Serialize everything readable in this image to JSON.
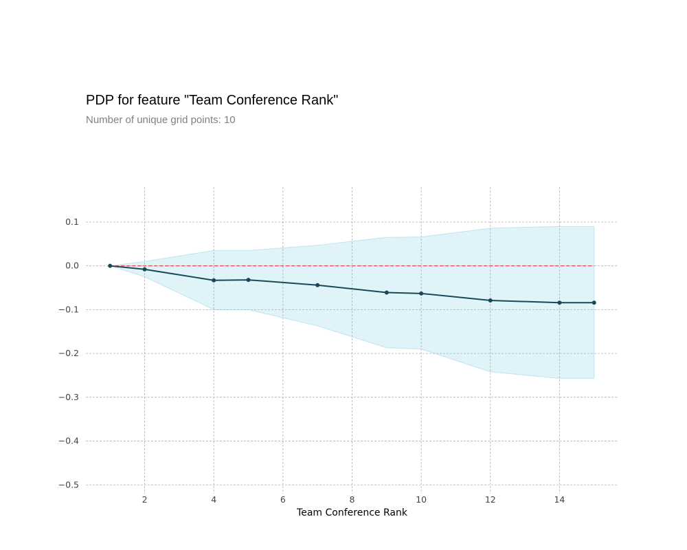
{
  "title": "PDP for feature \"Team Conference Rank\"",
  "subtitle": "Number of unique grid points: 10",
  "chart_data": {
    "type": "line",
    "xlabel": "Team Conference Rank",
    "ylabel": "",
    "xlim": [
      0.3,
      15.7
    ],
    "ylim": [
      -0.52,
      0.18
    ],
    "xticks": [
      2,
      4,
      6,
      8,
      10,
      12,
      14
    ],
    "xtick_labels": [
      "2",
      "4",
      "6",
      "8",
      "10",
      "12",
      "14"
    ],
    "yticks": [
      0.1,
      0.0,
      -0.1,
      -0.2,
      -0.3,
      -0.4,
      -0.5
    ],
    "ytick_labels": [
      "0.1",
      "0.0",
      "−0.1",
      "−0.2",
      "−0.3",
      "−0.4",
      "−0.5"
    ],
    "grid": true,
    "series": [
      {
        "x": [
          1,
          2,
          4,
          5,
          7,
          9,
          10,
          12,
          14,
          15
        ],
        "y": [
          0.0,
          -0.008,
          -0.033,
          -0.032,
          -0.044,
          -0.061,
          -0.063,
          -0.079,
          -0.084,
          -0.084
        ],
        "upper": [
          0.0,
          0.01,
          0.035,
          0.035,
          0.047,
          0.065,
          0.066,
          0.086,
          0.09,
          0.09
        ],
        "lower": [
          0.0,
          -0.025,
          -0.1,
          -0.1,
          -0.137,
          -0.187,
          -0.19,
          -0.242,
          -0.257,
          -0.257
        ]
      }
    ],
    "reference_line": 0.0,
    "colors": {
      "line": "#1A4858",
      "band": "#66C2DE",
      "reference": "#E0514D",
      "grid": "#B0B0B0"
    }
  }
}
